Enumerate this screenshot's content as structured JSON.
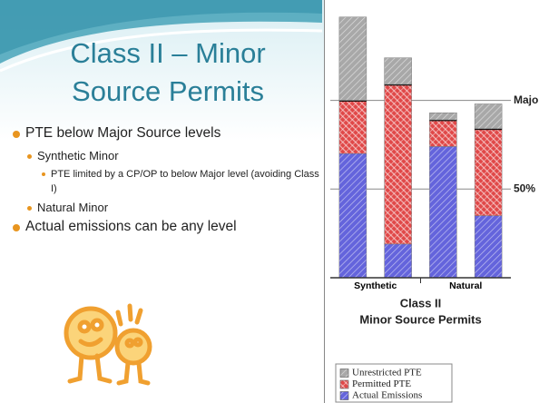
{
  "slide": {
    "title_lines": [
      "Class II – Minor",
      "Source Permits"
    ],
    "bullets": [
      {
        "level": 1,
        "text": "PTE below Major Source levels"
      },
      {
        "level": 2,
        "text": "Synthetic Minor"
      },
      {
        "level": 3,
        "text": "PTE limited by a CP/OP to below Major level (avoiding Class I)"
      },
      {
        "level": 2,
        "text": "Natural Minor"
      },
      {
        "level": 1,
        "text": "Actual emissions can be any level"
      }
    ]
  },
  "chart_data": {
    "type": "stacked_bar",
    "categories": [
      "Synthetic",
      null,
      "Natural",
      null
    ],
    "series": [
      {
        "name": "Unrestricted PTE",
        "color": "#a8a8a8",
        "values": [
          47,
          15,
          4,
          14
        ]
      },
      {
        "name": "Permitted PTE",
        "color": "#e04848",
        "values": [
          30,
          90,
          15,
          49
        ]
      },
      {
        "name": "Actual Emissions",
        "color": "#6464dc",
        "values": [
          70,
          19,
          74,
          35
        ]
      }
    ],
    "ylim": [
      0,
      152
    ],
    "reference_lines": [
      {
        "value": 100,
        "label": "Major"
      },
      {
        "value": 50,
        "label": "50%"
      }
    ],
    "xlabel_lines": [
      "Class II",
      "Minor Source Permits"
    ]
  }
}
